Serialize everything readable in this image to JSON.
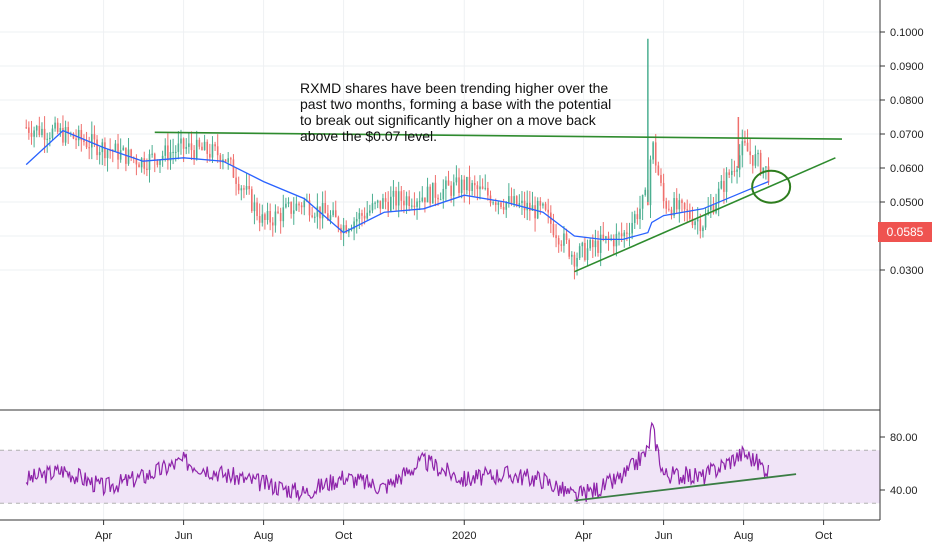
{
  "chart_data": [
    {
      "type": "candlestick",
      "ticker": "RXMD",
      "y_axis_ticks": [
        "0.1000",
        "0.0900",
        "0.0800",
        "0.0700",
        "0.0600",
        "0.0500",
        "0.0400",
        "0.0300"
      ],
      "y_tick_values": [
        0.1,
        0.09,
        0.08,
        0.07,
        0.06,
        0.05,
        0.04,
        0.03
      ],
      "ylim": [
        0.026,
        0.108
      ],
      "x_tick_labels": [
        "Apr",
        "Jun",
        "Aug",
        "Oct",
        "2020",
        "Apr",
        "Jun",
        "Aug",
        "Oct"
      ],
      "x": [
        "2019-02-01",
        "2019-03-01",
        "2019-04-01",
        "2019-05-01",
        "2019-06-01",
        "2019-07-01",
        "2019-08-01",
        "2019-09-01",
        "2019-10-01",
        "2019-11-01",
        "2019-12-01",
        "2020-01-01",
        "2020-02-01",
        "2020-03-01",
        "2020-03-25",
        "2020-04-15",
        "2020-05-01",
        "2020-05-20",
        "2020-05-23",
        "2020-06-01",
        "2020-07-01",
        "2020-08-01",
        "2020-08-20"
      ],
      "close": [
        0.072,
        0.07,
        0.066,
        0.062,
        0.066,
        0.064,
        0.044,
        0.05,
        0.043,
        0.05,
        0.052,
        0.055,
        0.05,
        0.047,
        0.034,
        0.038,
        0.04,
        0.052,
        0.068,
        0.05,
        0.044,
        0.066,
        0.0585
      ],
      "series": [
        {
          "name": "MA",
          "values": [
            0.061,
            0.071,
            0.066,
            0.062,
            0.063,
            0.062,
            0.056,
            0.051,
            0.041,
            0.047,
            0.048,
            0.052,
            0.05,
            0.047,
            0.04,
            0.039,
            0.039,
            0.041,
            0.044,
            0.046,
            0.048,
            0.053,
            0.056
          ]
        }
      ],
      "trendlines": [
        {
          "kind": "resistance",
          "from": {
            "x": "2019-05-10",
            "y": 0.0705
          },
          "to": {
            "x": "2020-10-15",
            "y": 0.0685
          },
          "color": "#2e8b2e"
        },
        {
          "kind": "support",
          "from": {
            "x": "2020-03-25",
            "y": 0.0295
          },
          "to": {
            "x": "2020-10-10",
            "y": 0.063
          },
          "color": "#2e8b2e"
        }
      ],
      "highlight_circle": {
        "x": "2020-08-22",
        "y": 0.0545,
        "color": "#2e7d1e"
      },
      "last_price": "0.0585",
      "last_price_color": "#ef5350",
      "up_color": "#4caf91",
      "down_color": "#ef6f6c",
      "ma_color": "#2962ff",
      "annotation": "RXMD shares have been trending higher over the past two months, forming a base with the potential to break out significantly higher on a move back above the $0.07 level."
    },
    {
      "type": "line",
      "indicator": "RSI",
      "y_axis_ticks": [
        "80.00",
        "40.00"
      ],
      "y_tick_values": [
        80,
        40
      ],
      "ylim": [
        22,
        95
      ],
      "band": [
        70,
        30
      ],
      "band_color": "#f0e4f7",
      "line_color": "#8e24aa",
      "x": [
        "2019-02-01",
        "2019-03-01",
        "2019-04-01",
        "2019-05-01",
        "2019-06-01",
        "2019-07-01",
        "2019-08-01",
        "2019-09-01",
        "2019-10-01",
        "2019-11-01",
        "2019-12-01",
        "2020-01-01",
        "2020-02-01",
        "2020-03-01",
        "2020-03-25",
        "2020-04-15",
        "2020-05-01",
        "2020-05-20",
        "2020-05-23",
        "2020-06-01",
        "2020-07-01",
        "2020-08-01",
        "2020-08-20"
      ],
      "values": [
        48,
        55,
        42,
        50,
        62,
        52,
        45,
        38,
        50,
        42,
        62,
        48,
        52,
        48,
        35,
        42,
        50,
        70,
        88,
        52,
        50,
        68,
        55
      ],
      "trendline": {
        "from": {
          "x": "2020-03-25",
          "y": 32
        },
        "to": {
          "x": "2020-09-10",
          "y": 52
        },
        "color": "#3a7d44"
      }
    }
  ]
}
